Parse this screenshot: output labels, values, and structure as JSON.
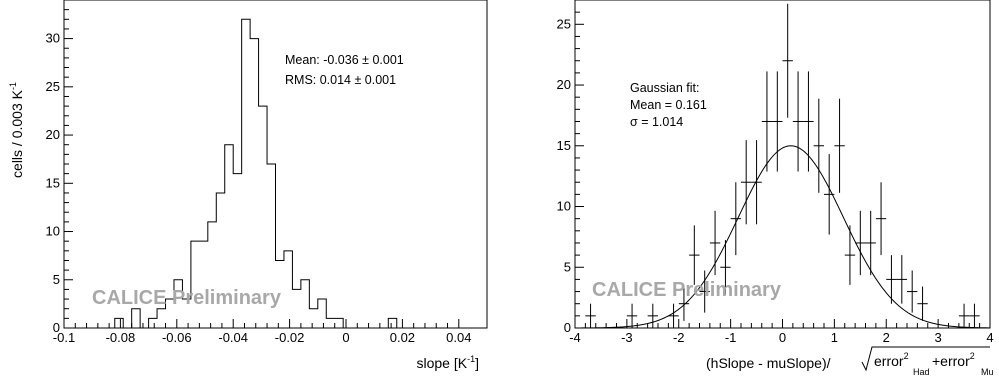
{
  "chart_data": [
    {
      "type": "histogram",
      "xlabel": "slope [K",
      "xlabel_sup": "-1",
      "xlabel_end": "]",
      "ylabel": "cells / 0.003 K",
      "ylabel_sup": "-1",
      "xlim": [
        -0.1,
        0.05
      ],
      "ylim": [
        0,
        34
      ],
      "x_ticks": [
        -0.1,
        -0.08,
        -0.06,
        -0.04,
        -0.02,
        0,
        0.02,
        0.04
      ],
      "x_tick_labels": [
        "-0.1",
        "-0.08",
        "-0.06",
        "-0.04",
        "-0.02",
        "0",
        "0.02",
        "0.04"
      ],
      "y_ticks": [
        0,
        5,
        10,
        15,
        20,
        25,
        30
      ],
      "y_tick_labels": [
        "0",
        "5",
        "10",
        "15",
        "20",
        "25",
        "30"
      ],
      "bin_width": 0.003,
      "bins": [
        {
          "lo": -0.082,
          "value": 1
        },
        {
          "lo": -0.079,
          "value": 0
        },
        {
          "lo": -0.076,
          "value": 2
        },
        {
          "lo": -0.073,
          "value": 0
        },
        {
          "lo": -0.07,
          "value": 1
        },
        {
          "lo": -0.067,
          "value": 2
        },
        {
          "lo": -0.064,
          "value": 3
        },
        {
          "lo": -0.061,
          "value": 5
        },
        {
          "lo": -0.058,
          "value": 3
        },
        {
          "lo": -0.055,
          "value": 9
        },
        {
          "lo": -0.052,
          "value": 9
        },
        {
          "lo": -0.049,
          "value": 11
        },
        {
          "lo": -0.046,
          "value": 14
        },
        {
          "lo": -0.043,
          "value": 19
        },
        {
          "lo": -0.04,
          "value": 16
        },
        {
          "lo": -0.037,
          "value": 32
        },
        {
          "lo": -0.034,
          "value": 30
        },
        {
          "lo": -0.031,
          "value": 23
        },
        {
          "lo": -0.028,
          "value": 17
        },
        {
          "lo": -0.025,
          "value": 7
        },
        {
          "lo": -0.022,
          "value": 8
        },
        {
          "lo": -0.019,
          "value": 4
        },
        {
          "lo": -0.016,
          "value": 5
        },
        {
          "lo": -0.013,
          "value": 2
        },
        {
          "lo": -0.01,
          "value": 3
        },
        {
          "lo": -0.007,
          "value": 1
        },
        {
          "lo": -0.004,
          "value": 1
        },
        {
          "lo": -0.001,
          "value": 0
        },
        {
          "lo": 0.015,
          "value": 1
        }
      ],
      "stats": [
        "Mean: -0.036 ± 0.001",
        "RMS: 0.014 ± 0.001"
      ],
      "watermark": "CALICE Preliminary"
    },
    {
      "type": "scatter",
      "xlabel_main": "(hSlope - muSlope)/",
      "xlabel_root_a": "error",
      "xlabel_sub_a": "Had",
      "xlabel_plus": "+error",
      "xlabel_sub_b": "Mu",
      "xlabel_sup": "2",
      "xlim": [
        -4,
        4
      ],
      "ylim": [
        0,
        27
      ],
      "x_ticks": [
        -4,
        -3,
        -2,
        -1,
        0,
        1,
        2,
        3,
        4
      ],
      "x_tick_labels": [
        "-4",
        "-3",
        "-2",
        "-1",
        "0",
        "1",
        "2",
        "3",
        "4"
      ],
      "y_ticks": [
        0,
        5,
        10,
        15,
        20,
        25
      ],
      "y_tick_labels": [
        "0",
        "5",
        "10",
        "15",
        "20",
        "25"
      ],
      "bin_width": 0.2,
      "points": [
        {
          "x": -3.7,
          "y": 1
        },
        {
          "x": -3.1,
          "y": 0
        },
        {
          "x": -2.9,
          "y": 1
        },
        {
          "x": -2.5,
          "y": 1
        },
        {
          "x": -2.1,
          "y": 1
        },
        {
          "x": -1.9,
          "y": 2
        },
        {
          "x": -1.7,
          "y": 6
        },
        {
          "x": -1.5,
          "y": 3
        },
        {
          "x": -1.3,
          "y": 7
        },
        {
          "x": -1.1,
          "y": 5
        },
        {
          "x": -0.9,
          "y": 9
        },
        {
          "x": -0.7,
          "y": 12
        },
        {
          "x": -0.5,
          "y": 12
        },
        {
          "x": -0.3,
          "y": 17
        },
        {
          "x": -0.1,
          "y": 17
        },
        {
          "x": 0.1,
          "y": 22
        },
        {
          "x": 0.3,
          "y": 17
        },
        {
          "x": 0.5,
          "y": 17
        },
        {
          "x": 0.7,
          "y": 15
        },
        {
          "x": 0.9,
          "y": 11
        },
        {
          "x": 1.1,
          "y": 15
        },
        {
          "x": 1.3,
          "y": 6
        },
        {
          "x": 1.5,
          "y": 7
        },
        {
          "x": 1.7,
          "y": 7
        },
        {
          "x": 1.9,
          "y": 9
        },
        {
          "x": 2.1,
          "y": 4
        },
        {
          "x": 2.3,
          "y": 4
        },
        {
          "x": 2.5,
          "y": 3
        },
        {
          "x": 2.7,
          "y": 2
        },
        {
          "x": 3.5,
          "y": 1
        },
        {
          "x": 3.7,
          "y": 1
        }
      ],
      "fit": {
        "mean": 0.161,
        "sigma": 1.014,
        "amplitude": 15
      },
      "stats": [
        "Gaussian fit:",
        "Mean =  0.161",
        "σ =  1.014"
      ],
      "watermark": "CALICE Preliminary"
    }
  ]
}
